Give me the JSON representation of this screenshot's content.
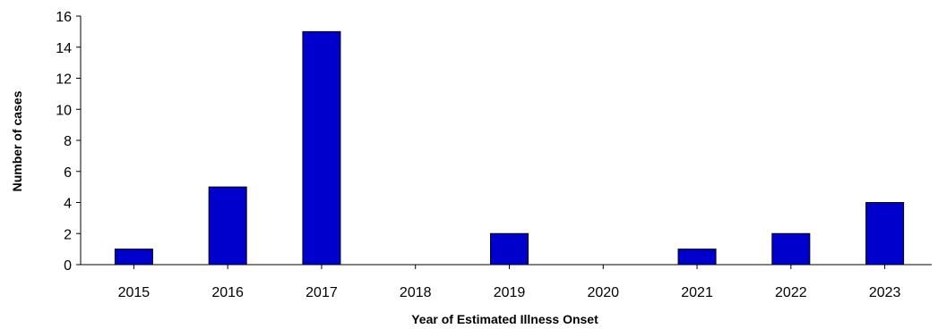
{
  "chart_data": {
    "type": "bar",
    "categories": [
      "2015",
      "2016",
      "2017",
      "2018",
      "2019",
      "2020",
      "2021",
      "2022",
      "2023"
    ],
    "values": [
      1,
      5,
      15,
      0,
      2,
      0,
      1,
      2,
      4
    ],
    "xlabel": "Year of Estimated Illness Onset",
    "ylabel": "Number of cases",
    "ylim": [
      0,
      16
    ],
    "yticks": [
      0,
      2,
      4,
      6,
      8,
      10,
      12,
      14,
      16
    ],
    "grid": false,
    "legend": "none",
    "bar_color": "#0000CC"
  }
}
